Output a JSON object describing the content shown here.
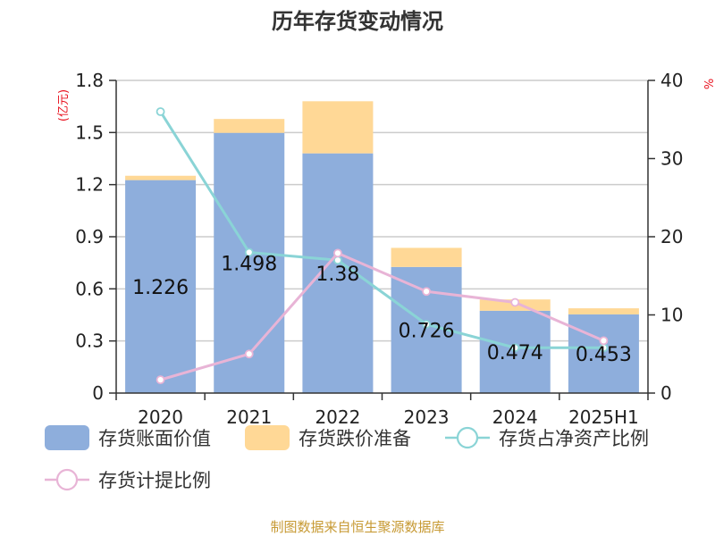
{
  "title": "历年存货变动情况",
  "source": "制图数据来自恒生聚源数据库",
  "colors": {
    "book_value": "#8eaedc",
    "impairment": "#ffd896",
    "net_asset_ratio": "#8ad4d6",
    "provision_ratio": "#e8b4d6",
    "axis": "#333333",
    "grid": "#cccccc",
    "unit": "#e8101d",
    "source": "#c79a34"
  },
  "chart_data": {
    "type": "bar",
    "title": "历年存货变动情况",
    "categories": [
      "2020",
      "2021",
      "2022",
      "2023",
      "2024",
      "2025H1"
    ],
    "left_axis": {
      "unit": "(亿元)",
      "ylim": [
        0,
        1.8
      ],
      "ticks": [
        "0",
        "0.3",
        "0.6",
        "0.9",
        "1.2",
        "1.5",
        "1.8"
      ]
    },
    "right_axis": {
      "unit": "%",
      "ylim": [
        0,
        40
      ],
      "ticks": [
        "0",
        "10",
        "20",
        "30",
        "40"
      ]
    },
    "grid": true,
    "legend_position": "bottom",
    "series": [
      {
        "name": "存货账面价值",
        "kind": "bar-stack-bottom",
        "axis": "left",
        "values": [
          1.226,
          1.498,
          1.38,
          0.726,
          0.474,
          0.453
        ],
        "labels": [
          "1.226",
          "1.498",
          "1.38",
          "0.726",
          "0.474",
          "0.453"
        ]
      },
      {
        "name": "存货跌价准备",
        "kind": "bar-stack-top",
        "axis": "left",
        "values": [
          0.025,
          0.08,
          0.3,
          0.11,
          0.065,
          0.035
        ]
      },
      {
        "name": "存货占净资产比例",
        "kind": "line",
        "axis": "right",
        "values": [
          36,
          18,
          17,
          8.8,
          5.8,
          5.8
        ]
      },
      {
        "name": "存货计提比例",
        "kind": "line",
        "axis": "right",
        "values": [
          1.7,
          5,
          17.9,
          13,
          11.6,
          6.7
        ]
      }
    ]
  }
}
